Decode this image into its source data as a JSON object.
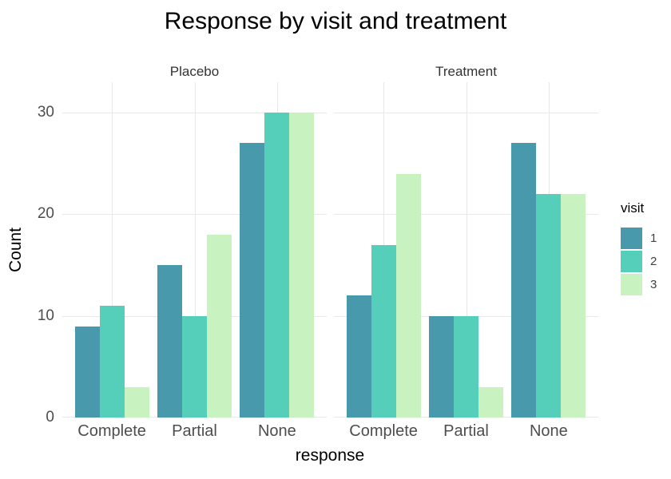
{
  "title": "Response by visit and treatment",
  "axes": {
    "x_label": "response",
    "y_label": "Count",
    "y_ticks": [
      "0",
      "10",
      "20",
      "30"
    ]
  },
  "legend": {
    "title": "visit",
    "entries": [
      {
        "label": "1",
        "color": "#4899ab"
      },
      {
        "label": "2",
        "color": "#55cfba"
      },
      {
        "label": "3",
        "color": "#c8f2c0"
      }
    ]
  },
  "colors": {
    "background": "#ffffff",
    "gridline": "#e8e8e8",
    "axis_text": "#4d4d4d",
    "strip_text": "#333333",
    "title_text": "#000000"
  },
  "chart_data": {
    "type": "bar",
    "title": "Response by visit and treatment",
    "xlabel": "response",
    "ylabel": "Count",
    "ylim": [
      0,
      33
    ],
    "y_major_gridlines": [
      0,
      10,
      20,
      30
    ],
    "grid": "major horizontal and vertical, light gray, no minor",
    "legend_title": "visit",
    "legend_position": "right",
    "facets": [
      {
        "label": "Placebo",
        "categories": [
          "Complete",
          "Partial",
          "None"
        ],
        "series": [
          {
            "name": "1",
            "values": [
              9,
              15,
              27
            ]
          },
          {
            "name": "2",
            "values": [
              11,
              10,
              30
            ]
          },
          {
            "name": "3",
            "values": [
              3,
              18,
              30
            ]
          }
        ]
      },
      {
        "label": "Treatment",
        "categories": [
          "Complete",
          "Partial",
          "None"
        ],
        "series": [
          {
            "name": "1",
            "values": [
              12,
              10,
              27
            ]
          },
          {
            "name": "2",
            "values": [
              17,
              10,
              22
            ]
          },
          {
            "name": "3",
            "values": [
              24,
              3,
              22
            ]
          }
        ]
      }
    ]
  }
}
